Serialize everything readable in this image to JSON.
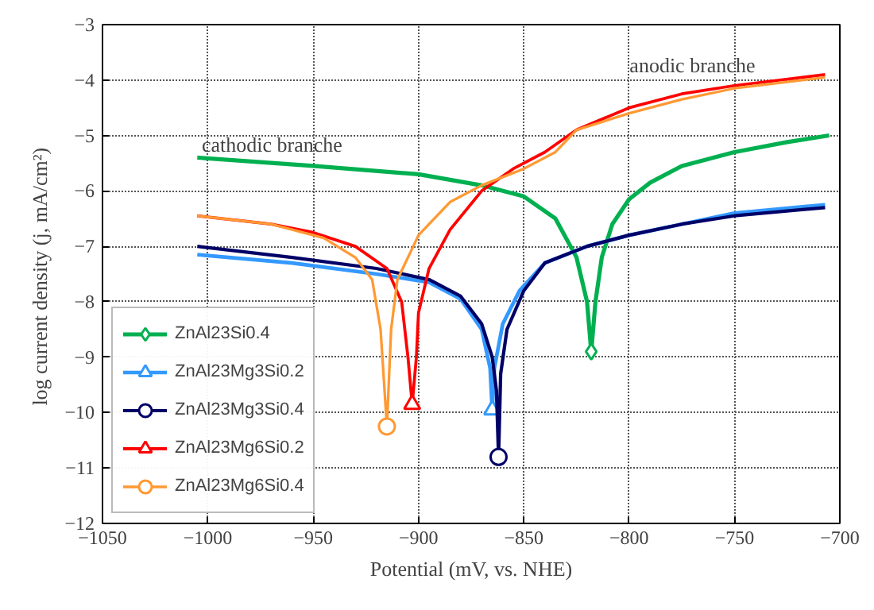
{
  "chart_data": {
    "type": "line",
    "xlabel": "Potential (mV, vs. NHE)",
    "ylabel": "log current density  (j, mA/cm²)",
    "xlim": [
      -1050,
      -700
    ],
    "xticks": [
      -1050,
      -1000,
      -950,
      -900,
      -850,
      -800,
      -750,
      -700
    ],
    "ylim": [
      -12,
      -3
    ],
    "yticks": [
      -12,
      -11,
      -10,
      -9,
      -8,
      -7,
      -6,
      -5,
      -4,
      -3
    ],
    "grid": true,
    "legend": "bottom left",
    "annotations": [
      "anodic branche",
      "cathodic branche"
    ],
    "series": [
      {
        "color": "#00b050",
        "x": [
          -1005,
          -950,
          -900,
          -870,
          -850,
          -835,
          -825,
          -820,
          -818,
          -816,
          -813,
          -808,
          -800,
          -790,
          -775,
          -750,
          -725,
          -705
        ],
        "values": [
          -5.4,
          -5.55,
          -5.7,
          -5.9,
          -6.1,
          -6.5,
          -7.2,
          -8.0,
          -8.9,
          -8.0,
          -7.2,
          -6.6,
          -6.15,
          -5.85,
          -5.55,
          -5.3,
          -5.12,
          -5.0
        ]
      },
      {
        "name": "ZnAl23Si0.4",
        "type": "scatter",
        "color": "#00b050",
        "marker": "diamond",
        "x": [
          -818
        ],
        "values": [
          -8.9
        ]
      },
      {
        "color": "#3399ff",
        "x": [
          -1005,
          -960,
          -920,
          -895,
          -880,
          -870,
          -866,
          -865,
          -864,
          -860,
          -852,
          -840,
          -820,
          -800,
          -775,
          -750,
          -707
        ],
        "values": [
          -7.15,
          -7.3,
          -7.5,
          -7.65,
          -7.95,
          -8.5,
          -9.2,
          -9.95,
          -9.2,
          -8.4,
          -7.8,
          -7.3,
          -7.0,
          -6.8,
          -6.6,
          -6.4,
          -6.25
        ]
      },
      {
        "name": "ZnAl23Mg3Si0.2",
        "type": "scatter",
        "color": "#3399ff",
        "marker": "triangle",
        "x": [
          -865
        ],
        "values": [
          -9.95
        ]
      },
      {
        "color": "#000066",
        "x": [
          -1005,
          -960,
          -920,
          -895,
          -880,
          -870,
          -865,
          -863,
          -862,
          -861,
          -858,
          -850,
          -840,
          -820,
          -800,
          -775,
          -750,
          -707
        ],
        "values": [
          -7.0,
          -7.2,
          -7.4,
          -7.6,
          -7.9,
          -8.4,
          -9.0,
          -9.6,
          -10.8,
          -9.3,
          -8.5,
          -7.8,
          -7.3,
          -7.0,
          -6.8,
          -6.6,
          -6.45,
          -6.3
        ]
      },
      {
        "name": "ZnAl23Mg3Si0.4",
        "type": "scatter",
        "color": "#000066",
        "marker": "circle",
        "x": [
          -862
        ],
        "values": [
          -10.8
        ]
      },
      {
        "color": "#ff0000",
        "x": [
          -1005,
          -970,
          -950,
          -930,
          -915,
          -908,
          -905,
          -903,
          -901,
          -900,
          -895,
          -885,
          -870,
          -855,
          -840,
          -825,
          -800,
          -775,
          -750,
          -707
        ],
        "values": [
          -6.45,
          -6.6,
          -6.75,
          -7.0,
          -7.4,
          -8.0,
          -9.0,
          -9.85,
          -9.0,
          -8.2,
          -7.4,
          -6.7,
          -6.0,
          -5.6,
          -5.3,
          -4.9,
          -4.5,
          -4.25,
          -4.1,
          -3.9
        ]
      },
      {
        "name": "ZnAl23Mg6Si0.2",
        "type": "scatter",
        "color": "#ff0000",
        "marker": "triangle",
        "x": [
          -903
        ],
        "values": [
          -9.85
        ]
      },
      {
        "color": "#ff9933",
        "x": [
          -1005,
          -970,
          -945,
          -930,
          -922,
          -918,
          -915,
          -913,
          -910,
          -900,
          -885,
          -870,
          -850,
          -835,
          -825,
          -800,
          -775,
          -750,
          -707
        ],
        "values": [
          -6.45,
          -6.6,
          -6.85,
          -7.2,
          -7.6,
          -8.5,
          -10.25,
          -8.5,
          -7.6,
          -6.8,
          -6.2,
          -5.9,
          -5.6,
          -5.3,
          -4.9,
          -4.6,
          -4.35,
          -4.15,
          -3.95
        ]
      },
      {
        "name": "ZnAl23Mg6Si0.4",
        "type": "scatter",
        "color": "#ff9933",
        "marker": "circle",
        "x": [
          -915
        ],
        "values": [
          -10.25
        ]
      }
    ]
  }
}
